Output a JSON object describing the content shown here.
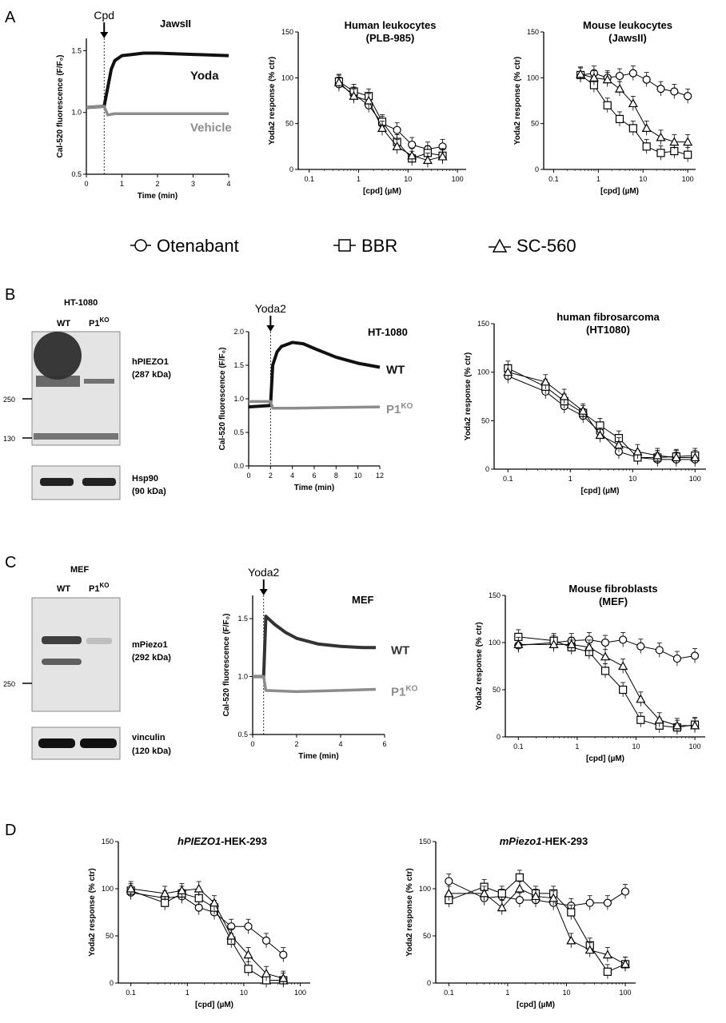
{
  "panel_letters": [
    "A",
    "B",
    "C",
    "D"
  ],
  "legend": {
    "items": [
      "Otenabant",
      "BBR",
      "SC-560"
    ]
  },
  "markers": {
    "otenabant": "circle",
    "bbr": "square",
    "sc560": "triangle"
  },
  "colors": {
    "trace_black": "#111111",
    "trace_grey": "#8c8c8c",
    "trace_dark": "#333333"
  },
  "blots": {
    "B": {
      "cell_line": "HT-1080",
      "lanes": [
        "WT",
        "P1",
        "KO"
      ],
      "top_protein": "hPIEZO1",
      "top_kda": "(287 kDa)",
      "markers": [
        "250",
        "130"
      ],
      "bottom_protein": "Hsp90",
      "bottom_kda": "(90 kDa)"
    },
    "C": {
      "cell_line": "MEF",
      "lanes": [
        "WT",
        "P1",
        "KO"
      ],
      "top_protein": "mPiezo1",
      "top_kda": "(292 kDa)",
      "markers": [
        "250"
      ],
      "bottom_protein": "vinculin",
      "bottom_kda": "(120 kDa)"
    }
  },
  "chart_data": [
    {
      "id": "A1",
      "type": "line",
      "title": "JawsII",
      "arrow_label": "Cpd",
      "arrow_x": 0.5,
      "xlabel": "Time (min)",
      "ylabel": "Cal-520 fluorescence (F/F₀)",
      "xlim": [
        0,
        4
      ],
      "ylim": [
        0.5,
        1.6
      ],
      "xticks": [
        "0",
        "1",
        "2",
        "3",
        "4"
      ],
      "yticks": [
        "0.5",
        "1.0",
        "1.5"
      ],
      "series": [
        {
          "name": "Yoda",
          "x": [
            0,
            0.5,
            0.6,
            0.7,
            0.8,
            1.0,
            1.3,
            1.6,
            2,
            3,
            4
          ],
          "values": [
            1.04,
            1.05,
            1.2,
            1.35,
            1.42,
            1.46,
            1.47,
            1.48,
            1.48,
            1.47,
            1.46
          ]
        },
        {
          "name": "Vehicle",
          "x": [
            0,
            0.5,
            0.6,
            0.8,
            1.0,
            2,
            3,
            4
          ],
          "values": [
            1.04,
            1.05,
            0.98,
            0.99,
            0.99,
            0.99,
            0.99,
            0.99
          ]
        }
      ]
    },
    {
      "id": "A2",
      "type": "scatter",
      "title": "Human leukocytes",
      "subtitle": "(PLB-985)",
      "xlabel": "[cpd] (µM)",
      "ylabel": "Yoda2 response (% ctr)",
      "xlim": [
        0.06,
        150
      ],
      "ylim": [
        0,
        150
      ],
      "xticks": [
        "0.1",
        "1",
        "10",
        "100"
      ],
      "yticks": [
        "0",
        "50",
        "100",
        "150"
      ],
      "series": [
        {
          "marker": "circle",
          "x": [
            0.4,
            0.8,
            1.6,
            3,
            6,
            12,
            25,
            50
          ],
          "values": [
            93,
            82,
            70,
            50,
            43,
            27,
            22,
            25
          ]
        },
        {
          "marker": "square",
          "x": [
            0.4,
            0.8,
            1.6,
            3,
            6,
            12,
            25,
            50
          ],
          "values": [
            96,
            85,
            80,
            52,
            30,
            12,
            18,
            15
          ]
        },
        {
          "marker": "triangle",
          "x": [
            0.4,
            0.8,
            1.6,
            3,
            6,
            12,
            25,
            50
          ],
          "values": [
            95,
            80,
            75,
            45,
            25,
            15,
            10,
            14
          ]
        }
      ]
    },
    {
      "id": "A3",
      "type": "scatter",
      "title": "Mouse leukocytes",
      "subtitle": "(JawsII)",
      "xlabel": "[cpd] (µM)",
      "ylabel": "Yoda2 response (% ctr)",
      "xlim": [
        0.06,
        150
      ],
      "ylim": [
        0,
        150
      ],
      "xticks": [
        "0.1",
        "1",
        "10",
        "100"
      ],
      "yticks": [
        "0",
        "50",
        "100",
        "150"
      ],
      "series": [
        {
          "marker": "circle",
          "x": [
            0.4,
            0.8,
            1.6,
            3,
            6,
            12,
            25,
            50,
            100
          ],
          "values": [
            103,
            105,
            100,
            102,
            105,
            98,
            88,
            85,
            80
          ]
        },
        {
          "marker": "square",
          "x": [
            0.4,
            0.8,
            1.6,
            3,
            6,
            12,
            25,
            50,
            100
          ],
          "values": [
            103,
            92,
            70,
            55,
            45,
            25,
            18,
            20,
            16
          ]
        },
        {
          "marker": "triangle",
          "x": [
            0.4,
            0.8,
            1.6,
            3,
            6,
            12,
            25,
            50,
            100
          ],
          "values": [
            104,
            100,
            98,
            88,
            72,
            45,
            35,
            30,
            30
          ]
        }
      ]
    },
    {
      "id": "B1",
      "type": "line",
      "title": "HT-1080",
      "arrow_label": "Yoda2",
      "arrow_x": 2,
      "xlabel": "Time (min)",
      "ylabel": "Cal-520 fluorescence (F/F₀)",
      "xlim": [
        0,
        12
      ],
      "ylim": [
        0,
        2.0
      ],
      "xticks": [
        "0",
        "2",
        "4",
        "6",
        "8",
        "10",
        "12"
      ],
      "yticks": [
        "0.0",
        "0.5",
        "1.0",
        "1.5",
        "2.0"
      ],
      "series": [
        {
          "name": "WT",
          "x": [
            0,
            2,
            2.2,
            2.6,
            3,
            4,
            5,
            6,
            8,
            10,
            12
          ],
          "values": [
            0.88,
            0.9,
            1.5,
            1.7,
            1.78,
            1.84,
            1.82,
            1.75,
            1.62,
            1.53,
            1.47
          ]
        },
        {
          "name": "P1",
          "x": [
            0,
            2,
            2.2,
            4,
            8,
            12
          ],
          "values": [
            0.96,
            0.96,
            0.86,
            0.86,
            0.87,
            0.88
          ]
        }
      ],
      "label_sup": "KO"
    },
    {
      "id": "B2",
      "type": "scatter",
      "title": "human fibrosarcoma",
      "subtitle": "(HT1080)",
      "xlabel": "[cpd] (µM)",
      "ylabel": "Yoda2 response (% ctr)",
      "xlim": [
        0.06,
        150
      ],
      "ylim": [
        0,
        150
      ],
      "xticks": [
        "0.1",
        "1",
        "10",
        "100"
      ],
      "yticks": [
        "0",
        "50",
        "100",
        "150"
      ],
      "series": [
        {
          "marker": "circle",
          "x": [
            0.1,
            0.4,
            0.8,
            1.6,
            3,
            6,
            12,
            25,
            50,
            100
          ],
          "values": [
            96,
            80,
            65,
            55,
            38,
            18,
            12,
            10,
            10,
            10
          ]
        },
        {
          "marker": "square",
          "x": [
            0.1,
            0.4,
            0.8,
            1.6,
            3,
            6,
            12,
            25,
            50,
            100
          ],
          "values": [
            104,
            85,
            70,
            58,
            45,
            32,
            12,
            12,
            13,
            14
          ]
        },
        {
          "marker": "triangle",
          "x": [
            0.1,
            0.4,
            0.8,
            1.6,
            3,
            6,
            12,
            25,
            50,
            100
          ],
          "values": [
            100,
            90,
            75,
            60,
            35,
            25,
            18,
            14,
            12,
            12
          ]
        }
      ]
    },
    {
      "id": "C1",
      "type": "line",
      "title": "MEF",
      "arrow_label": "Yoda2",
      "arrow_x": 0.5,
      "xlabel": "Time (min)",
      "ylabel": "Cal-520 fluorescence (F/F₀)",
      "xlim": [
        0,
        6
      ],
      "ylim": [
        0.5,
        1.7
      ],
      "xticks": [
        "0",
        "2",
        "4",
        "6"
      ],
      "yticks": [
        "0.5",
        "1.0",
        "1.5"
      ],
      "series": [
        {
          "name": "WT",
          "x": [
            0,
            0.5,
            0.6,
            1,
            1.5,
            2,
            3,
            4,
            5,
            5.6
          ],
          "values": [
            1.0,
            1.0,
            1.52,
            1.45,
            1.38,
            1.33,
            1.28,
            1.26,
            1.25,
            1.25
          ]
        },
        {
          "name": "P1",
          "x": [
            0,
            0.5,
            0.6,
            2,
            4,
            5.6
          ],
          "values": [
            1.0,
            1.0,
            0.88,
            0.87,
            0.88,
            0.89
          ]
        }
      ],
      "label_sup": "KO"
    },
    {
      "id": "C2",
      "type": "scatter",
      "title": "Mouse fibroblasts",
      "subtitle": "(MEF)",
      "xlabel": "[cpd] (µM)",
      "ylabel": "Yoda2 response (% ctr)",
      "xlim": [
        0.06,
        150
      ],
      "ylim": [
        0,
        150
      ],
      "xticks": [
        "0.1",
        "1",
        "10",
        "100"
      ],
      "yticks": [
        "0",
        "50",
        "100",
        "150"
      ],
      "series": [
        {
          "marker": "circle",
          "x": [
            0.1,
            0.4,
            0.8,
            1.6,
            3,
            6,
            12,
            25,
            50,
            100
          ],
          "values": [
            97,
            100,
            102,
            103,
            100,
            103,
            96,
            92,
            83,
            86
          ]
        },
        {
          "marker": "square",
          "x": [
            0.1,
            0.4,
            0.8,
            1.6,
            3,
            6,
            12,
            25,
            50,
            100
          ],
          "values": [
            106,
            102,
            95,
            90,
            70,
            50,
            18,
            12,
            10,
            13
          ]
        },
        {
          "marker": "triangle",
          "x": [
            0.1,
            0.4,
            0.8,
            1.6,
            3,
            6,
            12,
            25,
            50,
            100
          ],
          "values": [
            98,
            98,
            98,
            95,
            85,
            75,
            40,
            18,
            12,
            12
          ]
        }
      ]
    },
    {
      "id": "D1",
      "type": "scatter",
      "title": "hPIEZO1",
      "title_suffix": "-HEK-293",
      "xlabel": "[cpd] (µM)",
      "ylabel": "Yoda2 response (% ctr)",
      "xlim": [
        0.06,
        150
      ],
      "ylim": [
        0,
        150
      ],
      "xticks": [
        "0.1",
        "1",
        "10",
        "100"
      ],
      "yticks": [
        "0",
        "50",
        "100",
        "150"
      ],
      "series": [
        {
          "marker": "circle",
          "x": [
            0.1,
            0.4,
            0.8,
            1.6,
            3,
            6,
            12,
            25,
            50
          ],
          "values": [
            96,
            90,
            92,
            80,
            75,
            60,
            60,
            45,
            30
          ]
        },
        {
          "marker": "square",
          "x": [
            0.1,
            0.4,
            0.8,
            1.6,
            3,
            6,
            12,
            25,
            50
          ],
          "values": [
            98,
            85,
            95,
            90,
            80,
            45,
            15,
            3,
            3
          ]
        },
        {
          "marker": "triangle",
          "x": [
            0.1,
            0.4,
            0.8,
            1.6,
            3,
            6,
            12,
            25,
            50
          ],
          "values": [
            100,
            95,
            98,
            100,
            85,
            50,
            30,
            10,
            5
          ]
        }
      ]
    },
    {
      "id": "D2",
      "type": "scatter",
      "title": "mPiezo1",
      "title_suffix": "-HEK-293",
      "xlabel": "[cpd] (µM)",
      "ylabel": "Yoda2 response (% ctr)",
      "xlim": [
        0.06,
        150
      ],
      "ylim": [
        0,
        150
      ],
      "xticks": [
        "0.1",
        "1",
        "10",
        "100"
      ],
      "yticks": [
        "0",
        "50",
        "100",
        "150"
      ],
      "series": [
        {
          "marker": "circle",
          "x": [
            0.1,
            0.4,
            0.8,
            1.6,
            3,
            6,
            12,
            25,
            50,
            100
          ],
          "values": [
            108,
            90,
            92,
            88,
            88,
            85,
            82,
            85,
            85,
            97
          ]
        },
        {
          "marker": "square",
          "x": [
            0.1,
            0.4,
            0.8,
            1.6,
            3,
            6,
            12,
            25,
            50,
            100
          ],
          "values": [
            88,
            102,
            95,
            112,
            95,
            95,
            75,
            40,
            12,
            20
          ]
        },
        {
          "marker": "triangle",
          "x": [
            0.1,
            0.4,
            0.8,
            1.6,
            3,
            6,
            12,
            25,
            50,
            100
          ],
          "values": [
            95,
            95,
            80,
            100,
            92,
            90,
            45,
            35,
            30,
            20
          ]
        }
      ]
    }
  ]
}
